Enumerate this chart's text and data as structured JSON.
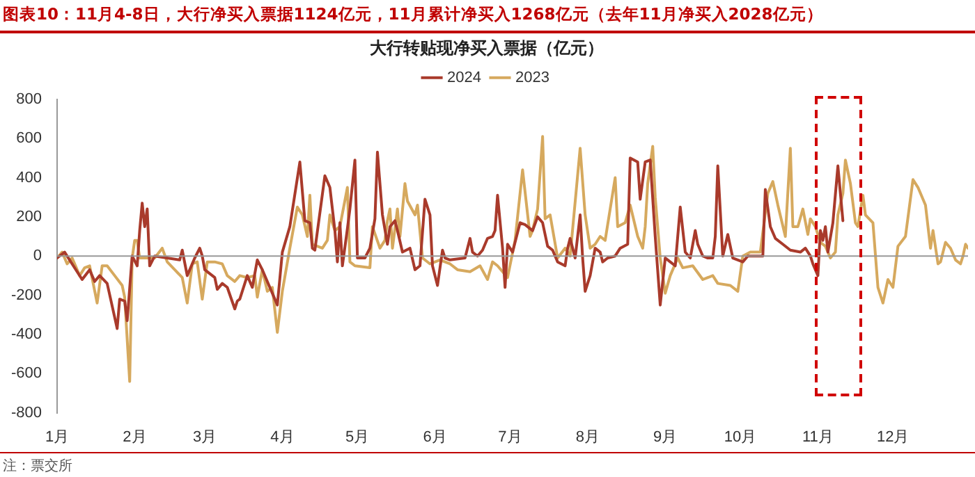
{
  "chart_data": {
    "type": "line",
    "title": "图表10：11月4-8日，大行净买入票据1124亿元，11月累计净买入1268亿元（去年11月净买入2028亿元）",
    "subtitle": "大行转贴现净买入票据（亿元）",
    "annotations": [
      "注：票交所"
    ],
    "xlim": [
      "--01-01",
      "--12-31"
    ],
    "xticks": [
      {
        "value": "--01-01",
        "label": "1月"
      },
      {
        "value": "--02-01",
        "label": "2月"
      },
      {
        "value": "--03-01",
        "label": "3月"
      },
      {
        "value": "--04-01",
        "label": "4月"
      },
      {
        "value": "--05-01",
        "label": "5月"
      },
      {
        "value": "--06-01",
        "label": "6月"
      },
      {
        "value": "--07-01",
        "label": "7月"
      },
      {
        "value": "--08-01",
        "label": "8月"
      },
      {
        "value": "--09-01",
        "label": "9月"
      },
      {
        "value": "--10-01",
        "label": "10月"
      },
      {
        "value": "--11-01",
        "label": "11月"
      },
      {
        "value": "--12-01",
        "label": "12月"
      }
    ],
    "ylim": [
      -800,
      800
    ],
    "yticks": [
      -800,
      -600,
      -400,
      -200,
      0,
      200,
      400,
      600,
      800
    ],
    "grid": false,
    "ref_lines": [
      {
        "axis": "y",
        "value": 0,
        "color": "#999999"
      }
    ],
    "legend": "top",
    "marker": "none",
    "line_style": "solid",
    "series": [
      {
        "name": "2024",
        "color": "#a93a2b",
        "x": [
          "--01-01",
          "--01-04",
          "--01-11",
          "--01-14",
          "--01-16",
          "--01-18",
          "--01-21",
          "--01-25",
          "--01-26",
          "--01-28",
          "--01-29",
          "--01-31",
          "--02-02",
          "--02-03",
          "--02-04",
          "--02-05",
          "--02-06",
          "--02-07",
          "--02-09",
          "--02-19",
          "--02-20",
          "--02-22",
          "--02-25",
          "--02-27",
          "--02-28",
          "--03-01",
          "--03-05",
          "--03-06",
          "--03-08",
          "--03-10",
          "--03-13",
          "--03-14",
          "--03-15",
          "--03-18",
          "--03-20",
          "--03-22",
          "--03-24",
          "--03-27",
          "--03-30",
          "--04-01",
          "--04-04",
          "--04-08",
          "--04-10",
          "--04-12",
          "--04-13",
          "--04-14",
          "--04-18",
          "--04-20",
          "--04-22",
          "--04-23",
          "--04-24",
          "--04-25",
          "--04-27",
          "--04-28",
          "--04-30",
          "--05-01",
          "--05-04",
          "--05-06",
          "--05-08",
          "--05-09",
          "--05-11",
          "--05-13",
          "--05-14",
          "--05-16",
          "--05-17",
          "--05-19",
          "--05-22",
          "--05-24",
          "--05-26",
          "--05-28",
          "--05-30",
          "--05-31",
          "--06-02",
          "--06-04",
          "--06-05",
          "--06-07",
          "--06-13",
          "--06-15",
          "--06-16",
          "--06-18",
          "--06-20",
          "--06-22",
          "--06-24",
          "--06-25",
          "--06-26",
          "--06-28",
          "--06-29",
          "--06-30",
          "--07-02",
          "--07-05",
          "--07-07",
          "--07-10",
          "--07-12",
          "--07-14",
          "--07-16",
          "--07-18",
          "--07-20",
          "--07-23",
          "--07-24",
          "--07-25",
          "--07-27",
          "--07-29",
          "--07-30",
          "--07-31",
          "--08-02",
          "--08-04",
          "--08-06",
          "--08-07",
          "--08-09",
          "--08-12",
          "--08-14",
          "--08-17",
          "--08-18",
          "--08-21",
          "--08-22",
          "--08-24",
          "--08-26",
          "--08-28",
          "--08-30",
          "--09-01",
          "--09-03",
          "--09-05",
          "--09-07",
          "--09-09",
          "--09-11",
          "--09-13",
          "--09-14",
          "--09-16",
          "--09-18",
          "--09-20",
          "--09-21",
          "--09-22",
          "--09-24",
          "--09-26",
          "--09-28",
          "--10-02",
          "--10-04",
          "--10-10",
          "--10-11",
          "--10-13",
          "--10-15",
          "--10-18",
          "--10-21",
          "--10-25",
          "--10-27",
          "--10-29",
          "--10-30",
          "--11-01",
          "--11-02",
          "--11-03",
          "--11-04",
          "--11-05",
          "--11-07",
          "--11-09",
          "--11-11"
        ],
        "values": [
          -10,
          20,
          -120,
          -70,
          -130,
          -100,
          -140,
          -370,
          -220,
          -230,
          -330,
          0,
          -50,
          130,
          270,
          150,
          240,
          -50,
          0,
          -20,
          30,
          -100,
          -10,
          40,
          0,
          -70,
          -110,
          -170,
          -140,
          -160,
          -270,
          -230,
          -220,
          -100,
          -160,
          -20,
          -70,
          -160,
          -250,
          20,
          150,
          480,
          180,
          170,
          40,
          30,
          410,
          350,
          130,
          -30,
          170,
          -50,
          140,
          240,
          490,
          -10,
          -10,
          40,
          190,
          530,
          210,
          60,
          150,
          180,
          130,
          20,
          40,
          -70,
          -50,
          290,
          210,
          -50,
          -150,
          30,
          -10,
          -20,
          -10,
          90,
          20,
          0,
          30,
          90,
          100,
          130,
          310,
          40,
          -160,
          60,
          20,
          170,
          160,
          130,
          200,
          170,
          50,
          30,
          -30,
          -50,
          40,
          90,
          -10,
          210,
          -10,
          -180,
          -100,
          40,
          20,
          -30,
          -10,
          0,
          40,
          60,
          500,
          480,
          290,
          480,
          490,
          100,
          -250,
          -10,
          -30,
          -50,
          250,
          20,
          -10,
          130,
          60,
          0,
          -10,
          -10,
          100,
          460,
          0,
          110,
          -10,
          -30,
          0,
          0,
          340,
          150,
          90,
          60,
          30,
          20,
          40,
          0,
          -40,
          -100,
          130,
          80,
          150,
          20,
          170,
          460,
          180
        ]
      },
      {
        "name": "2023",
        "color": "#d6a95e",
        "x": [
          "--01-01",
          "--01-03",
          "--01-05",
          "--01-07",
          "--01-10",
          "--01-12",
          "--01-14",
          "--01-17",
          "--01-19",
          "--01-21",
          "--01-24",
          "--01-27",
          "--01-28",
          "--01-30",
          "--01-31",
          "--02-01",
          "--02-02",
          "--02-03",
          "--02-09",
          "--02-12",
          "--02-14",
          "--02-17",
          "--02-20",
          "--02-22",
          "--02-24",
          "--02-26",
          "--02-28",
          "--03-02",
          "--03-05",
          "--03-08",
          "--03-10",
          "--03-13",
          "--03-15",
          "--03-18",
          "--03-21",
          "--03-22",
          "--03-24",
          "--03-26",
          "--03-28",
          "--03-30",
          "--04-01",
          "--04-04",
          "--04-07",
          "--04-09",
          "--04-11",
          "--04-12",
          "--04-13",
          "--04-17",
          "--04-19",
          "--04-20",
          "--04-22",
          "--04-24",
          "--04-27",
          "--04-28",
          "--04-30",
          "--05-06",
          "--05-07",
          "--05-10",
          "--05-12",
          "--05-13",
          "--05-14",
          "--05-15",
          "--05-17",
          "--05-18",
          "--05-20",
          "--05-21",
          "--05-24",
          "--05-25",
          "--05-27",
          "--05-30",
          "--06-03",
          "--06-07",
          "--06-10",
          "--06-15",
          "--06-19",
          "--06-22",
          "--06-24",
          "--06-26",
          "--06-30",
          "--07-03",
          "--07-06",
          "--07-09",
          "--07-10",
          "--07-12",
          "--07-14",
          "--07-15",
          "--07-17",
          "--07-20",
          "--07-23",
          "--07-25",
          "--07-29",
          "--07-31",
          "--08-02",
          "--08-04",
          "--08-06",
          "--08-08",
          "--08-12",
          "--08-13",
          "--08-16",
          "--08-18",
          "--08-21",
          "--08-23",
          "--08-24",
          "--08-25",
          "--08-27",
          "--08-28",
          "--08-30",
          "--09-01",
          "--09-03",
          "--09-06",
          "--09-08",
          "--09-12",
          "--09-16",
          "--09-20",
          "--09-22",
          "--09-27",
          "--09-30",
          "--10-02",
          "--10-05",
          "--10-09",
          "--10-12",
          "--10-14",
          "--10-16",
          "--10-19",
          "--10-21",
          "--10-22",
          "--10-24",
          "--10-26",
          "--10-28",
          "--10-29",
          "--10-31",
          "--11-02",
          "--11-04",
          "--11-06",
          "--11-08",
          "--11-09",
          "--11-11",
          "--11-12",
          "--11-14",
          "--11-16",
          "--11-17",
          "--11-19",
          "--11-20",
          "--11-23",
          "--11-25",
          "--11-27",
          "--11-29",
          "--12-01",
          "--12-03",
          "--12-06",
          "--12-09",
          "--12-11",
          "--12-14",
          "--12-16",
          "--12-17",
          "--12-19",
          "--12-20",
          "--12-22",
          "--12-24",
          "--12-26",
          "--12-28",
          "--12-29",
          "--12-30",
          "--12-31"
        ],
        "values": [
          -10,
          20,
          -40,
          -10,
          -100,
          -60,
          -50,
          -240,
          -50,
          -50,
          -100,
          -150,
          -210,
          -640,
          -10,
          80,
          80,
          -10,
          -10,
          40,
          -30,
          -70,
          -110,
          -240,
          -40,
          -30,
          -220,
          -30,
          -30,
          -40,
          -100,
          -130,
          -100,
          -110,
          -100,
          -210,
          -70,
          -180,
          -160,
          -390,
          -180,
          40,
          250,
          210,
          100,
          310,
          60,
          40,
          80,
          210,
          130,
          150,
          350,
          -30,
          -50,
          -60,
          150,
          40,
          80,
          180,
          240,
          40,
          240,
          100,
          370,
          280,
          210,
          260,
          -10,
          -40,
          -20,
          -40,
          -70,
          -80,
          -50,
          -120,
          -30,
          -50,
          -110,
          80,
          440,
          100,
          130,
          240,
          610,
          190,
          210,
          -10,
          40,
          0,
          550,
          210,
          40,
          60,
          100,
          80,
          400,
          150,
          170,
          260,
          100,
          40,
          150,
          370,
          560,
          300,
          -10,
          -190,
          -100,
          -10,
          -60,
          -50,
          -120,
          -100,
          -140,
          -150,
          -180,
          0,
          20,
          20,
          320,
          380,
          260,
          100,
          550,
          150,
          150,
          240,
          110,
          190,
          150,
          70,
          50,
          -10,
          20,
          210,
          320,
          490,
          370,
          170,
          150,
          310,
          210,
          170,
          -160,
          -240,
          -120,
          -160,
          50,
          100,
          390,
          350,
          260,
          40,
          130,
          -40,
          -30,
          70,
          40,
          -20,
          -40,
          0,
          60,
          40
        ]
      }
    ]
  }
}
